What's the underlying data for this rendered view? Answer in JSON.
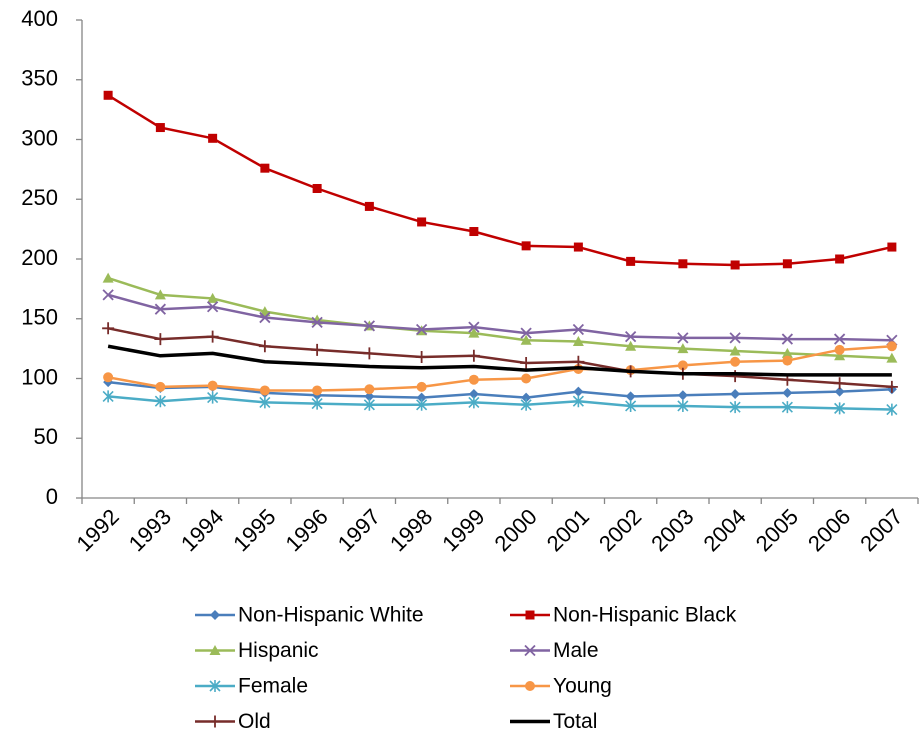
{
  "chart_data": {
    "type": "line",
    "categories": [
      "1992",
      "1993",
      "1994",
      "1995",
      "1996",
      "1997",
      "1998",
      "1999",
      "2000",
      "2001",
      "2002",
      "2003",
      "2004",
      "2005",
      "2006",
      "2007"
    ],
    "ylim": [
      0,
      400
    ],
    "yticks": [
      0,
      50,
      100,
      150,
      200,
      250,
      300,
      350,
      400
    ],
    "series": [
      {
        "name": "Non-Hispanic White",
        "color": "#4a7ebb",
        "marker": "diamond",
        "values": [
          97,
          92,
          93,
          88,
          86,
          85,
          84,
          87,
          84,
          89,
          85,
          86,
          87,
          88,
          89,
          91
        ]
      },
      {
        "name": "Non-Hispanic Black",
        "color": "#c00000",
        "marker": "square",
        "values": [
          337,
          310,
          301,
          276,
          259,
          244,
          231,
          223,
          211,
          210,
          198,
          196,
          195,
          196,
          200,
          210
        ]
      },
      {
        "name": "Hispanic",
        "color": "#9bbb59",
        "marker": "triangle",
        "values": [
          184,
          170,
          167,
          156,
          149,
          144,
          140,
          138,
          132,
          131,
          127,
          125,
          123,
          121,
          119,
          117
        ]
      },
      {
        "name": "Male",
        "color": "#8064a2",
        "marker": "x",
        "values": [
          170,
          158,
          160,
          151,
          147,
          144,
          141,
          143,
          138,
          141,
          135,
          134,
          134,
          133,
          133,
          132
        ]
      },
      {
        "name": "Female",
        "color": "#4bacc6",
        "marker": "asterisk",
        "values": [
          85,
          81,
          84,
          80,
          79,
          78,
          78,
          80,
          78,
          81,
          77,
          77,
          76,
          76,
          75,
          74
        ]
      },
      {
        "name": "Young",
        "color": "#f79646",
        "marker": "circle",
        "values": [
          101,
          93,
          94,
          90,
          90,
          91,
          93,
          99,
          100,
          108,
          107,
          111,
          114,
          115,
          124,
          127
        ]
      },
      {
        "name": "Old",
        "color": "#772c2a",
        "marker": "plus",
        "values": [
          142,
          133,
          135,
          127,
          124,
          121,
          118,
          119,
          113,
          114,
          106,
          104,
          102,
          99,
          96,
          93
        ]
      },
      {
        "name": "Total",
        "color": "#000000",
        "marker": "none",
        "values": [
          127,
          119,
          121,
          114,
          112,
          110,
          109,
          110,
          107,
          109,
          106,
          104,
          104,
          103,
          103,
          103
        ]
      }
    ]
  }
}
